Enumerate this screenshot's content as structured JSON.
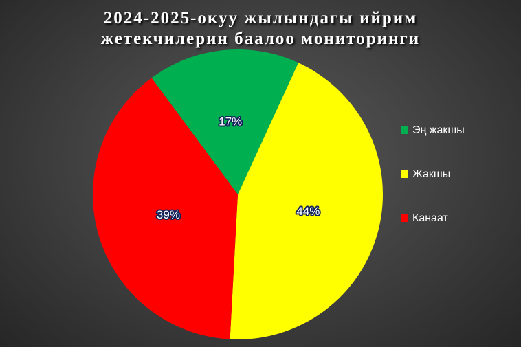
{
  "chart_data": {
    "type": "pie",
    "title": "2024-2025-окуу жылындагы ийрим жетекчилерин баалоо мониторинги",
    "categories": [
      "Эң жакшы",
      "Жакшы",
      "Канаат"
    ],
    "values": [
      17,
      44,
      39
    ],
    "value_labels": [
      "17%",
      "44%",
      "39%"
    ],
    "colors": [
      "#00b050",
      "#ffff00",
      "#ff0000"
    ],
    "legend": "right"
  }
}
